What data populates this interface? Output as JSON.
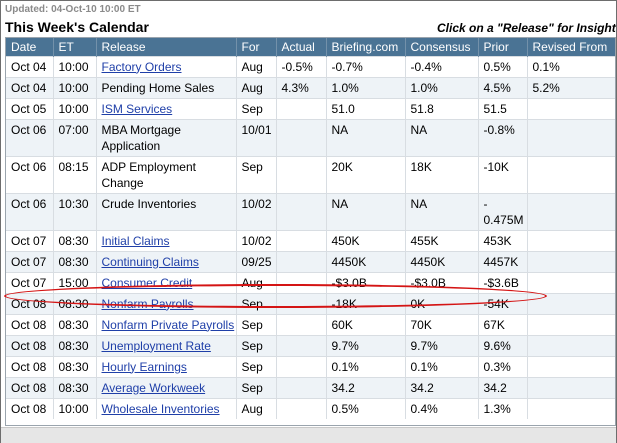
{
  "updated": "Updated: 04-Oct-10 10:00 ET",
  "title": "This Week's Calendar",
  "hint": "Click on a \"Release\" for Insight",
  "columns": [
    "Date",
    "ET",
    "Release",
    "For",
    "Actual",
    "Briefing.com",
    "Consensus",
    "Prior",
    "Revised From"
  ],
  "rows": [
    {
      "date": "Oct 04",
      "et": "10:00",
      "release": "Factory Orders",
      "link": true,
      "for": "Aug",
      "actual": "-0.5%",
      "briefing": "-0.7%",
      "consensus": "-0.4%",
      "prior": "0.5%",
      "revised": "0.1%"
    },
    {
      "date": "Oct 04",
      "et": "10:00",
      "release": "Pending Home Sales",
      "link": false,
      "for": "Aug",
      "actual": "4.3%",
      "briefing": "1.0%",
      "consensus": "1.0%",
      "prior": "4.5%",
      "revised": "5.2%"
    },
    {
      "date": "Oct 05",
      "et": "10:00",
      "release": "ISM Services",
      "link": true,
      "for": "Sep",
      "actual": "",
      "briefing": "51.0",
      "consensus": "51.8",
      "prior": "51.5",
      "revised": ""
    },
    {
      "date": "Oct 06",
      "et": "07:00",
      "release": "MBA Mortgage Application",
      "link": false,
      "for": "10/01",
      "actual": "",
      "briefing": "NA",
      "consensus": "NA",
      "prior": "-0.8%",
      "revised": ""
    },
    {
      "date": "Oct 06",
      "et": "08:15",
      "release": "ADP Employment Change",
      "link": false,
      "for": "Sep",
      "actual": "",
      "briefing": "20K",
      "consensus": "18K",
      "prior": "-10K",
      "revised": ""
    },
    {
      "date": "Oct 06",
      "et": "10:30",
      "release": "Crude Inventories",
      "link": false,
      "for": "10/02",
      "actual": "",
      "briefing": "NA",
      "consensus": "NA",
      "prior": "-\n0.475M",
      "revised": ""
    },
    {
      "date": "Oct 07",
      "et": "08:30",
      "release": "Initial Claims",
      "link": true,
      "for": "10/02",
      "actual": "",
      "briefing": "450K",
      "consensus": "455K",
      "prior": "453K",
      "revised": ""
    },
    {
      "date": "Oct 07",
      "et": "08:30",
      "release": "Continuing Claims",
      "link": true,
      "for": "09/25",
      "actual": "",
      "briefing": "4450K",
      "consensus": "4450K",
      "prior": "4457K",
      "revised": ""
    },
    {
      "date": "Oct 07",
      "et": "15:00",
      "release": "Consumer Credit",
      "link": true,
      "for": "Aug",
      "actual": "",
      "briefing": "-$3.0B",
      "consensus": "-$3.0B",
      "prior": "-$3.6B",
      "revised": ""
    },
    {
      "date": "Oct 08",
      "et": "08:30",
      "release": "Nonfarm Payrolls",
      "link": true,
      "for": "Sep",
      "actual": "",
      "briefing": "-18K",
      "consensus": "0K",
      "prior": "-54K",
      "revised": ""
    },
    {
      "date": "Oct 08",
      "et": "08:30",
      "release": "Nonfarm Private Payrolls",
      "link": true,
      "for": "Sep",
      "actual": "",
      "briefing": "60K",
      "consensus": "70K",
      "prior": "67K",
      "revised": ""
    },
    {
      "date": "Oct 08",
      "et": "08:30",
      "release": "Unemployment Rate",
      "link": true,
      "for": "Sep",
      "actual": "",
      "briefing": "9.7%",
      "consensus": "9.7%",
      "prior": "9.6%",
      "revised": ""
    },
    {
      "date": "Oct 08",
      "et": "08:30",
      "release": "Hourly Earnings",
      "link": true,
      "for": "Sep",
      "actual": "",
      "briefing": "0.1%",
      "consensus": "0.1%",
      "prior": "0.3%",
      "revised": ""
    },
    {
      "date": "Oct 08",
      "et": "08:30",
      "release": "Average Workweek",
      "link": true,
      "for": "Sep",
      "actual": "",
      "briefing": "34.2",
      "consensus": "34.2",
      "prior": "34.2",
      "revised": ""
    },
    {
      "date": "Oct 08",
      "et": "10:00",
      "release": "Wholesale Inventories",
      "link": true,
      "for": "Aug",
      "actual": "",
      "briefing": "0.5%",
      "consensus": "0.4%",
      "prior": "1.3%",
      "revised": ""
    }
  ],
  "colors": {
    "header_bg": "#4a7394",
    "link": "#1f3fa8",
    "highlight": "#d41414"
  }
}
